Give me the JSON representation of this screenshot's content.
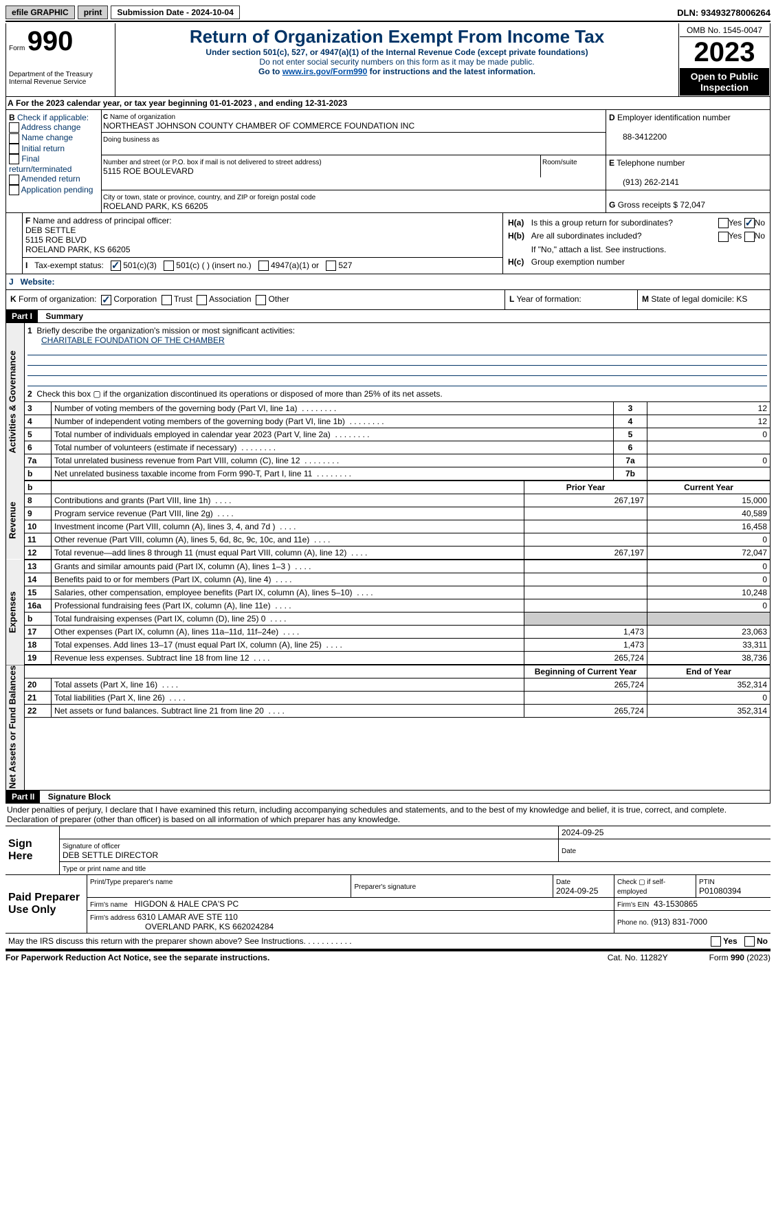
{
  "topbar": {
    "efile_label": "efile GRAPHIC",
    "print_label": "print",
    "submission_label": "Submission Date - 2024-10-04",
    "dln": "DLN: 93493278006264"
  },
  "header": {
    "form_prefix": "Form",
    "form_number": "990",
    "dept": "Department of the Treasury Internal Revenue Service",
    "title": "Return of Organization Exempt From Income Tax",
    "subtitle": "Under section 501(c), 527, or 4947(a)(1) of the Internal Revenue Code (except private foundations)",
    "note1": "Do not enter social security numbers on this form as it may be made public.",
    "note2_pre": "Go to ",
    "note2_link": "www.irs.gov/Form990",
    "note2_post": " for instructions and the latest information.",
    "omb": "OMB No. 1545-0047",
    "year": "2023",
    "open": "Open to Public Inspection"
  },
  "A": {
    "text": "For the 2023 calendar year, or tax year beginning 01-01-2023   , and ending 12-31-2023"
  },
  "B": {
    "label": "Check if applicable:",
    "items": [
      "Address change",
      "Name change",
      "Initial return",
      "Final return/terminated",
      "Amended return",
      "Application pending"
    ]
  },
  "C": {
    "name_label": "Name of organization",
    "name": "NORTHEAST JOHNSON COUNTY CHAMBER OF COMMERCE FOUNDATION INC",
    "dba_label": "Doing business as",
    "addr_label": "Number and street (or P.O. box if mail is not delivered to street address)",
    "addr": "5115 ROE BOULEVARD",
    "room_label": "Room/suite",
    "city_label": "City or town, state or province, country, and ZIP or foreign postal code",
    "city": "ROELAND PARK, KS  66205"
  },
  "D": {
    "label": "Employer identification number",
    "value": "88-3412200"
  },
  "E": {
    "label": "Telephone number",
    "value": "(913) 262-2141"
  },
  "G": {
    "label": "Gross receipts $",
    "value": "72,047"
  },
  "F": {
    "label": "Name and address of principal officer:",
    "name": "DEB SETTLE",
    "addr1": "5115 ROE BLVD",
    "addr2": "ROELAND PARK, KS  66205"
  },
  "H": {
    "a": "Is this a group return for subordinates?",
    "b": "Are all subordinates included?",
    "b_note": "If \"No,\" attach a list. See instructions.",
    "c": "Group exemption number",
    "yes": "Yes",
    "no": "No"
  },
  "I": {
    "label": "Tax-exempt status:",
    "opts": [
      "501(c)(3)",
      "501(c) (  ) (insert no.)",
      "4947(a)(1) or",
      "527"
    ]
  },
  "J": {
    "label": "Website:"
  },
  "K": {
    "label": "Form of organization:",
    "opts": [
      "Corporation",
      "Trust",
      "Association",
      "Other"
    ]
  },
  "L": {
    "label": "Year of formation:"
  },
  "M": {
    "label": "State of legal domicile: KS"
  },
  "part1": {
    "header": "Part I",
    "title": "Summary",
    "line1_label": "Briefly describe the organization's mission or most significant activities:",
    "line1_value": "CHARITABLE FOUNDATION OF THE CHAMBER",
    "line2": "Check this box ▢ if the organization discontinued its operations or disposed of more than 25% of its net assets.",
    "rows_gov": [
      {
        "n": "3",
        "label": "Number of voting members of the governing body (Part VI, line 1a)",
        "box": "3",
        "val": "12"
      },
      {
        "n": "4",
        "label": "Number of independent voting members of the governing body (Part VI, line 1b)",
        "box": "4",
        "val": "12"
      },
      {
        "n": "5",
        "label": "Total number of individuals employed in calendar year 2023 (Part V, line 2a)",
        "box": "5",
        "val": "0"
      },
      {
        "n": "6",
        "label": "Total number of volunteers (estimate if necessary)",
        "box": "6",
        "val": ""
      },
      {
        "n": "7a",
        "label": "Total unrelated business revenue from Part VIII, column (C), line 12",
        "box": "7a",
        "val": "0"
      },
      {
        "n": "b",
        "label": "Net unrelated business taxable income from Form 990-T, Part I, line 11",
        "box": "7b",
        "val": ""
      }
    ],
    "col_prior": "Prior Year",
    "col_current": "Current Year",
    "rows_rev": [
      {
        "n": "8",
        "label": "Contributions and grants (Part VIII, line 1h)",
        "prior": "267,197",
        "cur": "15,000"
      },
      {
        "n": "9",
        "label": "Program service revenue (Part VIII, line 2g)",
        "prior": "",
        "cur": "40,589"
      },
      {
        "n": "10",
        "label": "Investment income (Part VIII, column (A), lines 3, 4, and 7d )",
        "prior": "",
        "cur": "16,458"
      },
      {
        "n": "11",
        "label": "Other revenue (Part VIII, column (A), lines 5, 6d, 8c, 9c, 10c, and 11e)",
        "prior": "",
        "cur": "0"
      },
      {
        "n": "12",
        "label": "Total revenue—add lines 8 through 11 (must equal Part VIII, column (A), line 12)",
        "prior": "267,197",
        "cur": "72,047"
      }
    ],
    "rows_exp": [
      {
        "n": "13",
        "label": "Grants and similar amounts paid (Part IX, column (A), lines 1–3 )",
        "prior": "",
        "cur": "0"
      },
      {
        "n": "14",
        "label": "Benefits paid to or for members (Part IX, column (A), line 4)",
        "prior": "",
        "cur": "0"
      },
      {
        "n": "15",
        "label": "Salaries, other compensation, employee benefits (Part IX, column (A), lines 5–10)",
        "prior": "",
        "cur": "10,248"
      },
      {
        "n": "16a",
        "label": "Professional fundraising fees (Part IX, column (A), line 11e)",
        "prior": "",
        "cur": "0"
      },
      {
        "n": "b",
        "label": "Total fundraising expenses (Part IX, column (D), line 25) 0",
        "prior": "SHADE",
        "cur": "SHADE"
      },
      {
        "n": "17",
        "label": "Other expenses (Part IX, column (A), lines 11a–11d, 11f–24e)",
        "prior": "1,473",
        "cur": "23,063"
      },
      {
        "n": "18",
        "label": "Total expenses. Add lines 13–17 (must equal Part IX, column (A), line 25)",
        "prior": "1,473",
        "cur": "33,311"
      },
      {
        "n": "19",
        "label": "Revenue less expenses. Subtract line 18 from line 12",
        "prior": "265,724",
        "cur": "38,736"
      }
    ],
    "col_begin": "Beginning of Current Year",
    "col_end": "End of Year",
    "rows_net": [
      {
        "n": "20",
        "label": "Total assets (Part X, line 16)",
        "prior": "265,724",
        "cur": "352,314"
      },
      {
        "n": "21",
        "label": "Total liabilities (Part X, line 26)",
        "prior": "",
        "cur": "0"
      },
      {
        "n": "22",
        "label": "Net assets or fund balances. Subtract line 21 from line 20",
        "prior": "265,724",
        "cur": "352,314"
      }
    ],
    "sections": {
      "gov": "Activities & Governance",
      "rev": "Revenue",
      "exp": "Expenses",
      "net": "Net Assets or Fund Balances"
    }
  },
  "part2": {
    "header": "Part II",
    "title": "Signature Block",
    "declaration": "Under penalties of perjury, I declare that I have examined this return, including accompanying schedules and statements, and to the best of my knowledge and belief, it is true, correct, and complete. Declaration of preparer (other than officer) is based on all information of which preparer has any knowledge.",
    "sign_here": "Sign Here",
    "sig_officer": "Signature of officer",
    "officer": "DEB SETTLE DIRECTOR",
    "type_label": "Type or print name and title",
    "date_label": "Date",
    "date1": "2024-09-25",
    "paid": "Paid Preparer Use Only",
    "prep_name_label": "Print/Type preparer's name",
    "prep_sig_label": "Preparer's signature",
    "prep_date_label": "Date",
    "prep_date": "2024-09-25",
    "check_self": "Check ▢ if self-employed",
    "ptin_label": "PTIN",
    "ptin": "P01080394",
    "firm_name_label": "Firm's name",
    "firm_name": "HIGDON & HALE CPA'S PC",
    "firm_ein_label": "Firm's EIN",
    "firm_ein": "43-1530865",
    "firm_addr_label": "Firm's address",
    "firm_addr1": "6310 LAMAR AVE STE 110",
    "firm_addr2": "OVERLAND PARK, KS  662024284",
    "phone_label": "Phone no.",
    "phone": "(913) 831-7000",
    "discuss": "May the IRS discuss this return with the preparer shown above? See Instructions.",
    "yes": "Yes",
    "no": "No"
  },
  "footer": {
    "pra": "For Paperwork Reduction Act Notice, see the separate instructions.",
    "cat": "Cat. No. 11282Y",
    "form": "Form 990 (2023)"
  }
}
